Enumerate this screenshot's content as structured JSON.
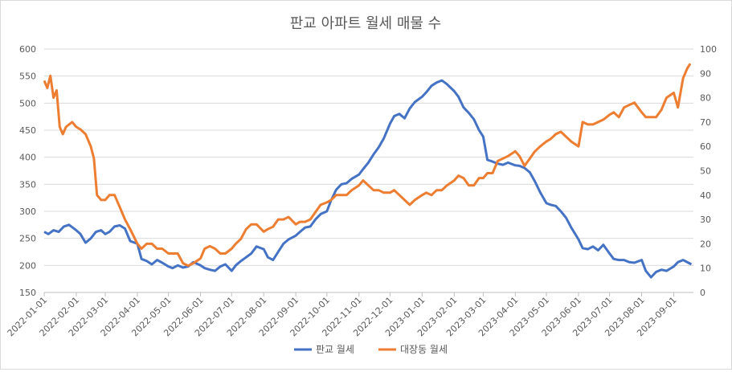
{
  "chart_data": {
    "type": "line",
    "title": "판교 아파트 월세 매물 수",
    "xlabel": "",
    "ylabel": "",
    "y_left": {
      "min": 150,
      "max": 600,
      "step": 50
    },
    "y_right": {
      "min": 0,
      "max": 100,
      "step": 10
    },
    "x_range": [
      "2022-01-01",
      "2023-09-20"
    ],
    "x_ticks": [
      "2022-01-01",
      "2022-02-01",
      "2022-03-01",
      "2022-04-01",
      "2022-05-01",
      "2022-06-01",
      "2022-07-01",
      "2022-08-01",
      "2022-09-01",
      "2022-10-01",
      "2022-11-01",
      "2022-12-01",
      "2023-01-01",
      "2023-02-01",
      "2023-03-01",
      "2023-04-01",
      "2023-05-01",
      "2023-06-01",
      "2023-07-01",
      "2023-08-01",
      "2023-09-01"
    ],
    "legend_position": "bottom",
    "grid": true,
    "series": [
      {
        "name": "판교 월세",
        "axis": "left",
        "color": "#4472C4",
        "points": [
          [
            "2022-01-01",
            262
          ],
          [
            "2022-01-05",
            258
          ],
          [
            "2022-01-10",
            265
          ],
          [
            "2022-01-15",
            262
          ],
          [
            "2022-01-20",
            272
          ],
          [
            "2022-01-25",
            275
          ],
          [
            "2022-02-01",
            265
          ],
          [
            "2022-02-05",
            258
          ],
          [
            "2022-02-10",
            242
          ],
          [
            "2022-02-15",
            250
          ],
          [
            "2022-02-20",
            262
          ],
          [
            "2022-02-25",
            265
          ],
          [
            "2022-03-01",
            258
          ],
          [
            "2022-03-05",
            262
          ],
          [
            "2022-03-10",
            272
          ],
          [
            "2022-03-15",
            274
          ],
          [
            "2022-03-20",
            268
          ],
          [
            "2022-03-25",
            245
          ],
          [
            "2022-04-01",
            240
          ],
          [
            "2022-04-05",
            212
          ],
          [
            "2022-04-10",
            208
          ],
          [
            "2022-04-15",
            202
          ],
          [
            "2022-04-20",
            210
          ],
          [
            "2022-04-25",
            205
          ],
          [
            "2022-05-01",
            198
          ],
          [
            "2022-05-05",
            195
          ],
          [
            "2022-05-10",
            200
          ],
          [
            "2022-05-15",
            196
          ],
          [
            "2022-05-20",
            198
          ],
          [
            "2022-05-25",
            206
          ],
          [
            "2022-06-01",
            200
          ],
          [
            "2022-06-05",
            195
          ],
          [
            "2022-06-10",
            192
          ],
          [
            "2022-06-15",
            190
          ],
          [
            "2022-06-20",
            198
          ],
          [
            "2022-06-25",
            202
          ],
          [
            "2022-07-01",
            190
          ],
          [
            "2022-07-05",
            200
          ],
          [
            "2022-07-10",
            208
          ],
          [
            "2022-07-15",
            215
          ],
          [
            "2022-07-20",
            222
          ],
          [
            "2022-07-25",
            235
          ],
          [
            "2022-08-01",
            230
          ],
          [
            "2022-08-05",
            215
          ],
          [
            "2022-08-10",
            210
          ],
          [
            "2022-08-15",
            225
          ],
          [
            "2022-08-20",
            240
          ],
          [
            "2022-08-25",
            248
          ],
          [
            "2022-09-01",
            255
          ],
          [
            "2022-09-05",
            262
          ],
          [
            "2022-09-10",
            270
          ],
          [
            "2022-09-15",
            272
          ],
          [
            "2022-09-20",
            285
          ],
          [
            "2022-09-25",
            295
          ],
          [
            "2022-10-01",
            300
          ],
          [
            "2022-10-05",
            320
          ],
          [
            "2022-10-10",
            340
          ],
          [
            "2022-10-15",
            350
          ],
          [
            "2022-10-20",
            352
          ],
          [
            "2022-10-25",
            360
          ],
          [
            "2022-11-01",
            368
          ],
          [
            "2022-11-05",
            378
          ],
          [
            "2022-11-10",
            390
          ],
          [
            "2022-11-15",
            405
          ],
          [
            "2022-11-20",
            418
          ],
          [
            "2022-11-25",
            435
          ],
          [
            "2022-12-01",
            462
          ],
          [
            "2022-12-05",
            476
          ],
          [
            "2022-12-10",
            480
          ],
          [
            "2022-12-15",
            472
          ],
          [
            "2022-12-20",
            490
          ],
          [
            "2022-12-25",
            502
          ],
          [
            "2023-01-01",
            512
          ],
          [
            "2023-01-05",
            520
          ],
          [
            "2023-01-10",
            532
          ],
          [
            "2023-01-15",
            538
          ],
          [
            "2023-01-20",
            542
          ],
          [
            "2023-01-25",
            535
          ],
          [
            "2023-02-01",
            522
          ],
          [
            "2023-02-05",
            512
          ],
          [
            "2023-02-10",
            492
          ],
          [
            "2023-02-15",
            482
          ],
          [
            "2023-02-20",
            470
          ],
          [
            "2023-02-25",
            450
          ],
          [
            "2023-03-01",
            438
          ],
          [
            "2023-03-05",
            395
          ],
          [
            "2023-03-10",
            392
          ],
          [
            "2023-03-15",
            388
          ],
          [
            "2023-03-20",
            386
          ],
          [
            "2023-03-25",
            390
          ],
          [
            "2023-04-01",
            385
          ],
          [
            "2023-04-05",
            384
          ],
          [
            "2023-04-10",
            380
          ],
          [
            "2023-04-15",
            372
          ],
          [
            "2023-04-20",
            355
          ],
          [
            "2023-04-25",
            335
          ],
          [
            "2023-05-01",
            315
          ],
          [
            "2023-05-05",
            312
          ],
          [
            "2023-05-10",
            310
          ],
          [
            "2023-05-15",
            300
          ],
          [
            "2023-05-20",
            288
          ],
          [
            "2023-05-25",
            270
          ],
          [
            "2023-06-01",
            248
          ],
          [
            "2023-06-05",
            232
          ],
          [
            "2023-06-10",
            230
          ],
          [
            "2023-06-15",
            235
          ],
          [
            "2023-06-20",
            228
          ],
          [
            "2023-06-25",
            238
          ],
          [
            "2023-07-01",
            222
          ],
          [
            "2023-07-05",
            212
          ],
          [
            "2023-07-10",
            210
          ],
          [
            "2023-07-15",
            210
          ],
          [
            "2023-07-20",
            206
          ],
          [
            "2023-07-25",
            205
          ],
          [
            "2023-08-01",
            210
          ],
          [
            "2023-08-05",
            190
          ],
          [
            "2023-08-10",
            178
          ],
          [
            "2023-08-15",
            188
          ],
          [
            "2023-08-20",
            192
          ],
          [
            "2023-08-25",
            190
          ],
          [
            "2023-09-01",
            198
          ],
          [
            "2023-09-05",
            206
          ],
          [
            "2023-09-10",
            210
          ],
          [
            "2023-09-15",
            205
          ],
          [
            "2023-09-18",
            202
          ]
        ]
      },
      {
        "name": "대장동 월세",
        "axis": "right",
        "color": "#ED7D31",
        "points": [
          [
            "2022-01-01",
            87
          ],
          [
            "2022-01-04",
            84
          ],
          [
            "2022-01-07",
            89
          ],
          [
            "2022-01-10",
            80
          ],
          [
            "2022-01-13",
            83
          ],
          [
            "2022-01-16",
            68
          ],
          [
            "2022-01-19",
            65
          ],
          [
            "2022-01-22",
            68
          ],
          [
            "2022-01-25",
            69
          ],
          [
            "2022-01-28",
            70
          ],
          [
            "2022-02-01",
            68
          ],
          [
            "2022-02-05",
            67
          ],
          [
            "2022-02-10",
            65
          ],
          [
            "2022-02-15",
            60
          ],
          [
            "2022-02-18",
            55
          ],
          [
            "2022-02-21",
            40
          ],
          [
            "2022-02-25",
            38
          ],
          [
            "2022-03-01",
            38
          ],
          [
            "2022-03-05",
            40
          ],
          [
            "2022-03-10",
            40
          ],
          [
            "2022-03-15",
            35
          ],
          [
            "2022-03-20",
            30
          ],
          [
            "2022-03-25",
            26
          ],
          [
            "2022-04-01",
            20
          ],
          [
            "2022-04-05",
            18
          ],
          [
            "2022-04-10",
            20
          ],
          [
            "2022-04-15",
            20
          ],
          [
            "2022-04-20",
            18
          ],
          [
            "2022-04-25",
            18
          ],
          [
            "2022-05-01",
            16
          ],
          [
            "2022-05-05",
            16
          ],
          [
            "2022-05-10",
            16
          ],
          [
            "2022-05-15",
            12
          ],
          [
            "2022-05-20",
            11
          ],
          [
            "2022-05-25",
            12
          ],
          [
            "2022-06-01",
            14
          ],
          [
            "2022-06-05",
            18
          ],
          [
            "2022-06-10",
            19
          ],
          [
            "2022-06-15",
            18
          ],
          [
            "2022-06-20",
            16
          ],
          [
            "2022-06-25",
            16
          ],
          [
            "2022-07-01",
            18
          ],
          [
            "2022-07-05",
            20
          ],
          [
            "2022-07-10",
            22
          ],
          [
            "2022-07-15",
            26
          ],
          [
            "2022-07-20",
            28
          ],
          [
            "2022-07-25",
            28
          ],
          [
            "2022-08-01",
            25
          ],
          [
            "2022-08-05",
            26
          ],
          [
            "2022-08-10",
            27
          ],
          [
            "2022-08-15",
            30
          ],
          [
            "2022-08-20",
            30
          ],
          [
            "2022-08-25",
            31
          ],
          [
            "2022-09-01",
            28
          ],
          [
            "2022-09-05",
            29
          ],
          [
            "2022-09-10",
            29
          ],
          [
            "2022-09-15",
            30
          ],
          [
            "2022-09-20",
            33
          ],
          [
            "2022-09-25",
            36
          ],
          [
            "2022-10-01",
            37
          ],
          [
            "2022-10-05",
            38
          ],
          [
            "2022-10-10",
            40
          ],
          [
            "2022-10-15",
            40
          ],
          [
            "2022-10-20",
            40
          ],
          [
            "2022-10-25",
            42
          ],
          [
            "2022-11-01",
            44
          ],
          [
            "2022-11-05",
            46
          ],
          [
            "2022-11-10",
            44
          ],
          [
            "2022-11-15",
            42
          ],
          [
            "2022-11-20",
            42
          ],
          [
            "2022-11-25",
            41
          ],
          [
            "2022-12-01",
            41
          ],
          [
            "2022-12-05",
            42
          ],
          [
            "2022-12-10",
            40
          ],
          [
            "2022-12-15",
            38
          ],
          [
            "2022-12-20",
            36
          ],
          [
            "2022-12-25",
            38
          ],
          [
            "2023-01-01",
            40
          ],
          [
            "2023-01-05",
            41
          ],
          [
            "2023-01-10",
            40
          ],
          [
            "2023-01-15",
            42
          ],
          [
            "2023-01-20",
            42
          ],
          [
            "2023-01-25",
            44
          ],
          [
            "2023-02-01",
            46
          ],
          [
            "2023-02-05",
            48
          ],
          [
            "2023-02-10",
            47
          ],
          [
            "2023-02-15",
            44
          ],
          [
            "2023-02-20",
            44
          ],
          [
            "2023-02-25",
            47
          ],
          [
            "2023-03-01",
            47
          ],
          [
            "2023-03-05",
            49
          ],
          [
            "2023-03-10",
            49
          ],
          [
            "2023-03-15",
            54
          ],
          [
            "2023-03-20",
            55
          ],
          [
            "2023-03-25",
            56
          ],
          [
            "2023-04-01",
            58
          ],
          [
            "2023-04-05",
            56
          ],
          [
            "2023-04-10",
            52
          ],
          [
            "2023-04-15",
            55
          ],
          [
            "2023-04-20",
            58
          ],
          [
            "2023-04-25",
            60
          ],
          [
            "2023-05-01",
            62
          ],
          [
            "2023-05-05",
            63
          ],
          [
            "2023-05-10",
            65
          ],
          [
            "2023-05-15",
            66
          ],
          [
            "2023-05-20",
            64
          ],
          [
            "2023-05-25",
            62
          ],
          [
            "2023-06-01",
            60
          ],
          [
            "2023-06-05",
            70
          ],
          [
            "2023-06-10",
            69
          ],
          [
            "2023-06-15",
            69
          ],
          [
            "2023-06-20",
            70
          ],
          [
            "2023-06-25",
            71
          ],
          [
            "2023-07-01",
            73
          ],
          [
            "2023-07-05",
            74
          ],
          [
            "2023-07-10",
            72
          ],
          [
            "2023-07-15",
            76
          ],
          [
            "2023-07-20",
            77
          ],
          [
            "2023-07-25",
            78
          ],
          [
            "2023-08-01",
            74
          ],
          [
            "2023-08-05",
            72
          ],
          [
            "2023-08-10",
            72
          ],
          [
            "2023-08-15",
            72
          ],
          [
            "2023-08-20",
            75
          ],
          [
            "2023-08-25",
            80
          ],
          [
            "2023-09-01",
            82
          ],
          [
            "2023-09-05",
            76
          ],
          [
            "2023-09-10",
            88
          ],
          [
            "2023-09-14",
            92
          ],
          [
            "2023-09-17",
            94
          ]
        ]
      }
    ]
  }
}
